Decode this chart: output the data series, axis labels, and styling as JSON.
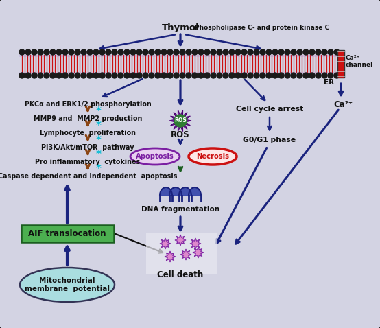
{
  "bg_color": "#d3d3e3",
  "border_color": "#222222",
  "thymol_label": "Thymol",
  "phospholipase_label": "Phospholipase C- and protein kinase C",
  "er_label": "ER",
  "ca_channel_label": "Ca²⁺\nchannel",
  "ca_label": "Ca²⁺",
  "ros_label": "ROS",
  "apoptosis_label": "Apoptosis",
  "necrosis_label": "Necrosis",
  "dna_label": "DNA fragmentation",
  "cell_death_label": "Cell death",
  "cell_cycle_label": "Cell cycle arrest",
  "g0g1_label": "G0/G1 phase",
  "pkc_label": "PKCα and ERK1/2 phosphorylation",
  "mmp_label": "MMP9 and  MMP2 production",
  "lymph_label": "Lymphocyte  proliferation",
  "pi3k_label": "PI3K/Akt/mTOR  pathway",
  "pro_label": "Pro inflammatory  cytokines",
  "caspase_label": "Caspase dependent and independent  apoptosis",
  "aif_label": "AIF translocation",
  "mito_label": "Mitochondrial\nmembrane  potential",
  "blue": "#1a237e",
  "brown": "#8B4513",
  "black": "#111111",
  "green_box": "#4caf50",
  "mito_color": "#aadde0",
  "purple": "#7b1fa2",
  "red_border": "#cc1111",
  "ros_green": "#2d7a2d",
  "ros_purple": "#7b1fa2",
  "cyan": "#00bcd4"
}
